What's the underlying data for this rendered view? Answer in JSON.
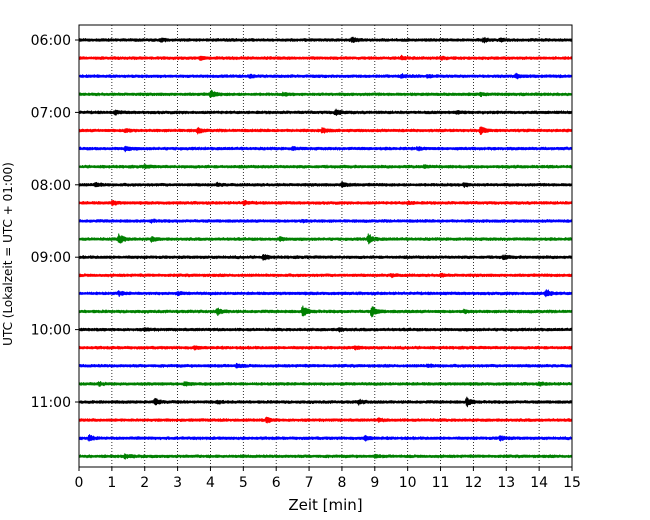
{
  "chart_data": {
    "type": "line",
    "title": "",
    "xlabel": "Zeit  [min]",
    "ylabel": "UTC (Lokalzeit = UTC + 01:00)",
    "xlim": [
      0,
      15
    ],
    "x_ticks": [
      "0",
      "1",
      "2",
      "3",
      "4",
      "5",
      "6",
      "7",
      "8",
      "9",
      "10",
      "11",
      "12",
      "13",
      "14",
      "15"
    ],
    "y_ticks": [
      "06:00",
      "07:00",
      "08:00",
      "09:00",
      "10:00",
      "11:00"
    ],
    "grid": {
      "x": "dotted-vertical",
      "y": false
    },
    "trace_interval_min": 15,
    "color_cycle": [
      "#000000",
      "#ff0000",
      "#0000ff",
      "#008000"
    ],
    "traces": [
      {
        "start": "06:00",
        "color": "#000000",
        "events": [
          [
            2.5,
            0.35
          ],
          [
            8.3,
            0.6
          ],
          [
            12.3,
            0.45
          ],
          [
            12.8,
            0.3
          ]
        ]
      },
      {
        "start": "06:15",
        "color": "#ff0000",
        "events": [
          [
            3.7,
            0.3
          ],
          [
            9.8,
            0.35
          ],
          [
            11.0,
            0.25
          ]
        ]
      },
      {
        "start": "06:30",
        "color": "#0000ff",
        "events": [
          [
            5.2,
            0.3
          ],
          [
            9.8,
            0.4
          ],
          [
            10.6,
            0.3
          ],
          [
            13.3,
            0.55
          ]
        ]
      },
      {
        "start": "06:45",
        "color": "#008000",
        "events": [
          [
            4.0,
            0.85
          ],
          [
            6.2,
            0.3
          ],
          [
            12.2,
            0.3
          ]
        ]
      },
      {
        "start": "07:00",
        "color": "#000000",
        "events": [
          [
            1.1,
            0.35
          ],
          [
            7.8,
            0.7
          ],
          [
            11.5,
            0.3
          ]
        ]
      },
      {
        "start": "07:15",
        "color": "#ff0000",
        "events": [
          [
            1.4,
            0.45
          ],
          [
            3.6,
            0.6
          ],
          [
            7.4,
            0.6
          ],
          [
            12.2,
            1.0
          ]
        ]
      },
      {
        "start": "07:30",
        "color": "#0000ff",
        "events": [
          [
            1.4,
            0.55
          ],
          [
            6.5,
            0.3
          ],
          [
            10.3,
            0.3
          ]
        ]
      },
      {
        "start": "07:45",
        "color": "#008000",
        "events": [
          [
            2.0,
            0.3
          ],
          [
            10.5,
            0.35
          ]
        ]
      },
      {
        "start": "08:00",
        "color": "#000000",
        "events": [
          [
            0.5,
            0.5
          ],
          [
            4.2,
            0.3
          ],
          [
            8.0,
            0.7
          ],
          [
            11.7,
            0.45
          ]
        ]
      },
      {
        "start": "08:15",
        "color": "#ff0000",
        "events": [
          [
            1.0,
            0.5
          ],
          [
            5.0,
            0.45
          ],
          [
            10.0,
            0.3
          ]
        ]
      },
      {
        "start": "08:30",
        "color": "#0000ff",
        "events": [
          [
            2.2,
            0.25
          ],
          [
            6.8,
            0.25
          ]
        ]
      },
      {
        "start": "08:45",
        "color": "#008000",
        "events": [
          [
            1.2,
            1.3
          ],
          [
            2.2,
            0.5
          ],
          [
            6.1,
            0.4
          ],
          [
            8.8,
            1.1
          ]
        ]
      },
      {
        "start": "09:00",
        "color": "#000000",
        "events": [
          [
            5.6,
            0.6
          ],
          [
            12.9,
            0.4
          ]
        ]
      },
      {
        "start": "09:15",
        "color": "#ff0000",
        "events": [
          [
            9.5,
            0.3
          ],
          [
            11.0,
            0.25
          ]
        ]
      },
      {
        "start": "09:30",
        "color": "#0000ff",
        "events": [
          [
            1.2,
            0.45
          ],
          [
            3.0,
            0.3
          ],
          [
            14.2,
            0.9
          ]
        ]
      },
      {
        "start": "09:45",
        "color": "#008000",
        "events": [
          [
            4.2,
            0.75
          ],
          [
            6.8,
            1.4
          ],
          [
            8.9,
            1.2
          ],
          [
            11.7,
            0.35
          ]
        ]
      },
      {
        "start": "10:00",
        "color": "#000000",
        "events": [
          [
            2.0,
            0.3
          ],
          [
            7.9,
            0.4
          ]
        ]
      },
      {
        "start": "10:15",
        "color": "#ff0000",
        "events": [
          [
            3.5,
            0.3
          ],
          [
            8.4,
            0.3
          ]
        ]
      },
      {
        "start": "10:30",
        "color": "#0000ff",
        "events": [
          [
            4.8,
            0.45
          ],
          [
            10.6,
            0.3
          ]
        ]
      },
      {
        "start": "10:45",
        "color": "#008000",
        "events": [
          [
            0.6,
            0.35
          ],
          [
            3.2,
            0.45
          ],
          [
            14.0,
            0.3
          ]
        ]
      },
      {
        "start": "11:00",
        "color": "#000000",
        "events": [
          [
            2.3,
            0.75
          ],
          [
            4.2,
            0.35
          ],
          [
            8.5,
            0.5
          ],
          [
            11.8,
            0.95
          ]
        ]
      },
      {
        "start": "11:15",
        "color": "#ff0000",
        "events": [
          [
            5.7,
            0.55
          ],
          [
            9.1,
            0.3
          ]
        ]
      },
      {
        "start": "11:30",
        "color": "#0000ff",
        "events": [
          [
            0.3,
            0.6
          ],
          [
            8.7,
            0.5
          ],
          [
            12.8,
            0.55
          ]
        ]
      },
      {
        "start": "11:45",
        "color": "#008000",
        "events": [
          [
            1.4,
            0.45
          ],
          [
            9.0,
            0.25
          ]
        ]
      }
    ]
  }
}
